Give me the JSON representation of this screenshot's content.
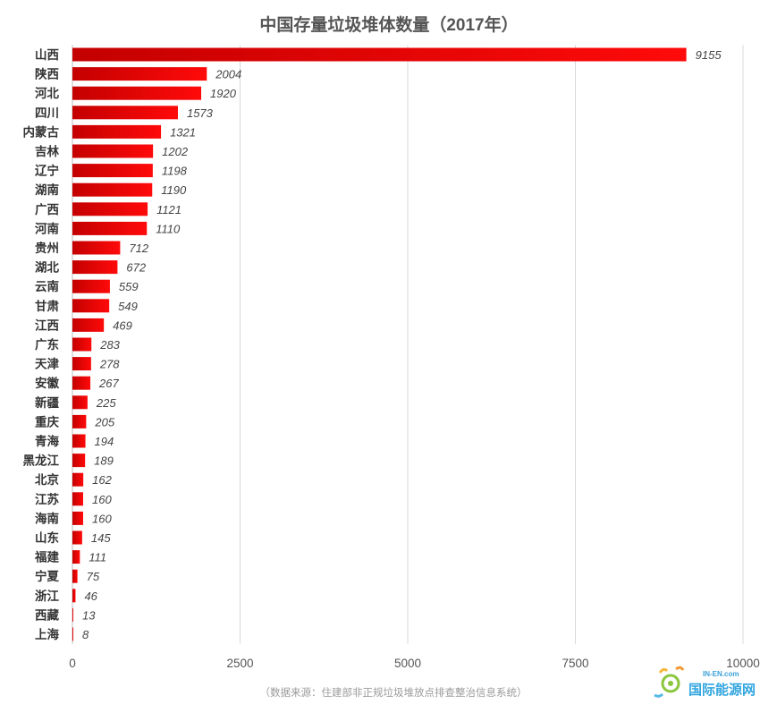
{
  "chart_data": {
    "type": "bar",
    "orientation": "horizontal",
    "title": "中国存量垃圾堆体数量（2017年）",
    "categories": [
      "山西",
      "陕西",
      "河北",
      "四川",
      "内蒙古",
      "吉林",
      "辽宁",
      "湖南",
      "广西",
      "河南",
      "贵州",
      "湖北",
      "云南",
      "甘肃",
      "江西",
      "广东",
      "天津",
      "安徽",
      "新疆",
      "重庆",
      "青海",
      "黑龙江",
      "北京",
      "江苏",
      "海南",
      "山东",
      "福建",
      "宁夏",
      "浙江",
      "西藏",
      "上海"
    ],
    "values": [
      9155,
      2004,
      1920,
      1573,
      1321,
      1202,
      1198,
      1190,
      1121,
      1110,
      712,
      672,
      559,
      549,
      469,
      283,
      278,
      267,
      225,
      205,
      194,
      189,
      162,
      160,
      160,
      145,
      111,
      75,
      46,
      13,
      8
    ],
    "xlim": [
      0,
      10000
    ],
    "xticks": [
      0,
      2500,
      5000,
      7500,
      10000
    ],
    "grid": true,
    "bar_color_dark": "#c40000",
    "bar_color_light": "#ff0a0a",
    "source_note": "（数据来源：住建部非正规垃圾堆放点排查整治信息系统）"
  },
  "watermark": {
    "top_text": "IN-EN.com",
    "main_text": "国际能源网"
  }
}
